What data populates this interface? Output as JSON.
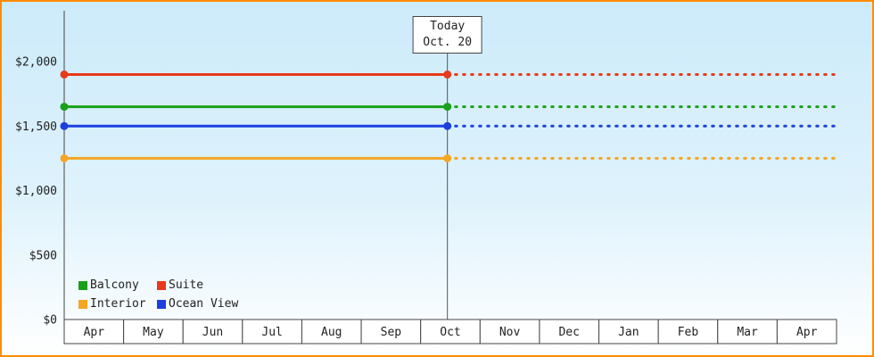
{
  "chart_data": {
    "type": "line",
    "title": "",
    "x_axis": {
      "categories": [
        "Apr",
        "May",
        "Jun",
        "Jul",
        "Aug",
        "Sep",
        "Oct",
        "Nov",
        "Dec",
        "Jan",
        "Feb",
        "Mar",
        "Apr"
      ]
    },
    "y_axis": {
      "min": 0,
      "max": 2000,
      "ticks": [
        {
          "label": "$2,000",
          "value": 2000
        },
        {
          "label": "$1,500",
          "value": 1500
        },
        {
          "label": "$1,000",
          "value": 1000
        },
        {
          "label": "$500",
          "value": 500
        },
        {
          "label": "$0",
          "value": 0
        }
      ]
    },
    "series": [
      {
        "name": "Suite",
        "color": "#e8391d",
        "value": 1900
      },
      {
        "name": "Balcony",
        "color": "#1aa01a",
        "value": 1650
      },
      {
        "name": "Ocean View",
        "color": "#1d3fe0",
        "value": 1500
      },
      {
        "name": "Interior",
        "color": "#f5a623",
        "value": 1250
      }
    ],
    "legend_order": [
      "Balcony",
      "Suite",
      "Interior",
      "Ocean View"
    ],
    "today_marker": {
      "line1": "Today",
      "line2": "Oct. 20",
      "month_index": 6,
      "month_fraction": 0.45
    },
    "style": {
      "frame_border_color": "#ff8c00",
      "background_top": "#cdebfa",
      "background_bottom": "#ffffff",
      "axis_color": "#444444",
      "text_color": "#222222",
      "month_cell_fill": "#ffffff",
      "line_width": 3,
      "projection_style": "dotted"
    }
  }
}
